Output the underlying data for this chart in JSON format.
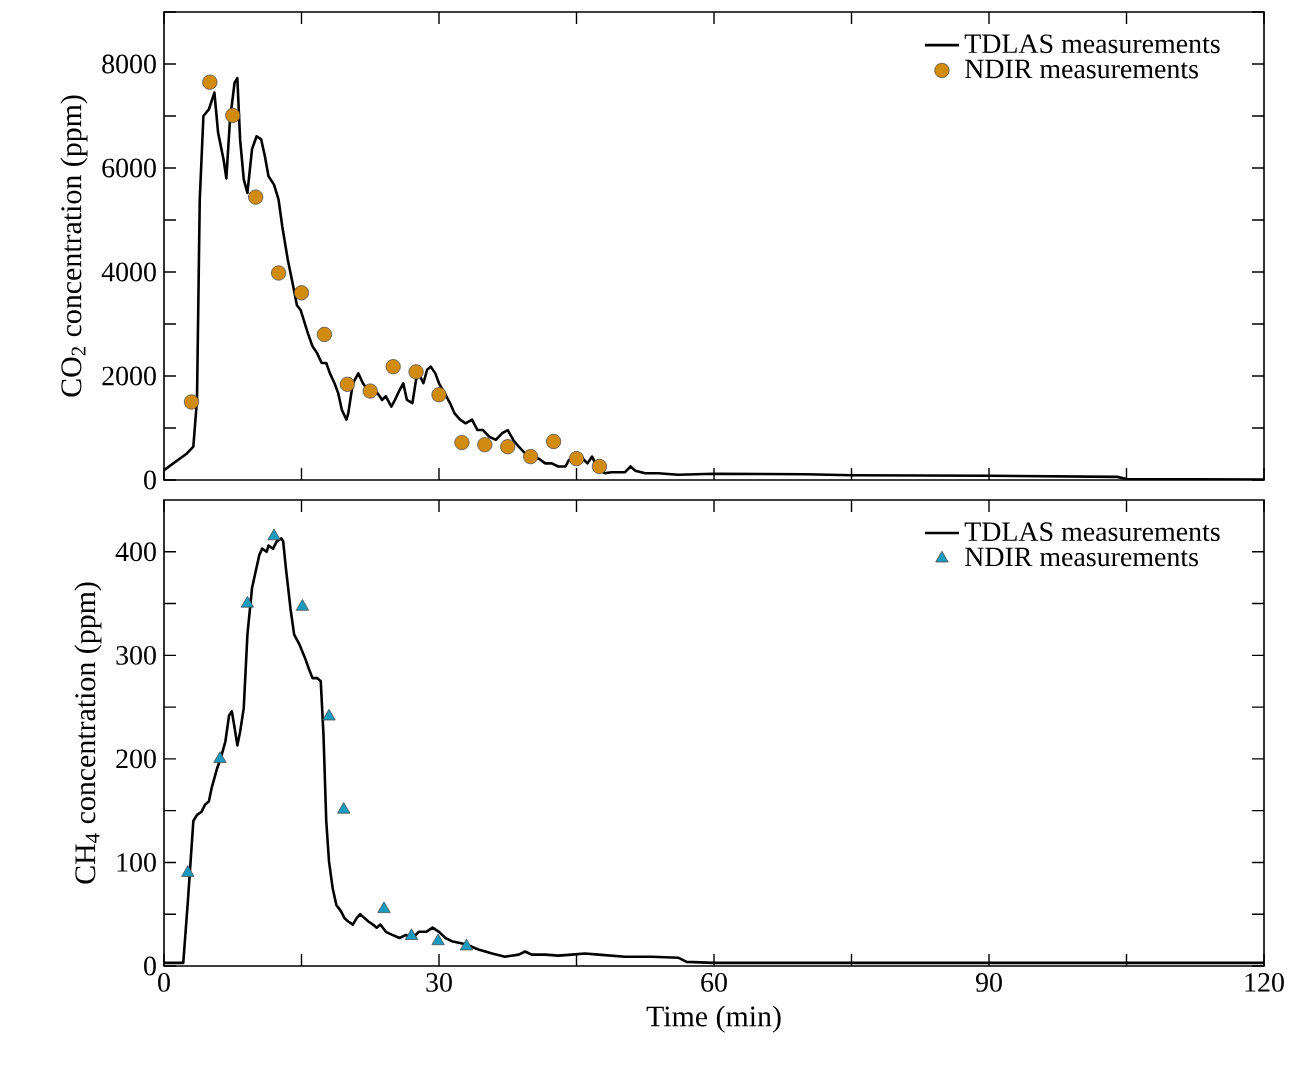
{
  "chart_data": [
    {
      "type": "line",
      "ylabel": "CO$_{2}$ concentration (ppm)",
      "xlim": [
        0,
        120
      ],
      "ylim": [
        0,
        9000
      ],
      "tick_labels": "y",
      "legend": "top right",
      "xticks": [
        0,
        {
          "value": 15,
          "label": null
        },
        30,
        {
          "value": 45,
          "label": null
        },
        60,
        {
          "value": 75,
          "label": null
        },
        90,
        {
          "value": 105,
          "label": null
        },
        120
      ],
      "yticks": [
        0,
        {
          "value": 1000,
          "label": null
        },
        2000,
        {
          "value": 3000,
          "label": null
        },
        4000,
        {
          "value": 5000,
          "label": null
        },
        6000,
        {
          "value": 7000,
          "label": null
        },
        8000,
        {
          "value": 9000,
          "label": null
        }
      ],
      "series": [
        {
          "name": "TDLAS measurements",
          "color": "#000000",
          "marker": "none",
          "x": [
            0,
            2.5,
            3.2,
            3.6,
            3.9,
            4.3,
            4.9,
            5.5,
            5.9,
            6.5,
            6.8,
            7.2,
            7.7,
            8.0,
            8.3,
            8.7,
            9.1,
            9.6,
            10.1,
            10.6,
            11.0,
            11.4,
            12.0,
            12.5,
            12.9,
            13.5,
            14.1,
            14.5,
            14.9,
            15.7,
            16.2,
            16.7,
            17.2,
            17.7,
            18.1,
            18.6,
            19.0,
            19.4,
            19.9,
            20.1,
            20.6,
            21.2,
            21.7,
            22.2,
            22.8,
            23.3,
            23.8,
            24.2,
            24.8,
            25.2,
            25.7,
            26.1,
            26.5,
            27.1,
            27.5,
            27.8,
            28.3,
            28.7,
            29.1,
            29.6,
            30.0,
            30.6,
            31.2,
            31.7,
            32.3,
            32.9,
            33.6,
            34.2,
            34.8,
            35.5,
            36.2,
            36.9,
            37.5,
            38.1,
            38.7,
            39.4,
            40.1,
            40.9,
            41.6,
            42.3,
            43.0,
            43.8,
            44.2,
            44.8,
            45.2,
            45.8,
            46.2,
            46.7,
            47.1,
            47.5,
            48.1,
            48.8,
            49.6,
            50.3,
            50.9,
            51.4,
            52.5,
            53.9,
            56.1,
            60,
            70,
            75,
            90,
            104,
            105,
            120
          ],
          "values": [
            190,
            510,
            640,
            1540,
            5390,
            7000,
            7130,
            7450,
            6680,
            6160,
            5800,
            6930,
            7640,
            7730,
            6550,
            5780,
            5520,
            6360,
            6610,
            6550,
            6230,
            5840,
            5680,
            5390,
            4880,
            4240,
            3720,
            3360,
            3270,
            2820,
            2570,
            2440,
            2250,
            2250,
            2050,
            1860,
            1670,
            1350,
            1160,
            1280,
            1860,
            2050,
            1860,
            1730,
            1670,
            1670,
            1540,
            1610,
            1410,
            1540,
            1730,
            1860,
            1540,
            1480,
            1930,
            2050,
            1860,
            2120,
            2180,
            2050,
            1860,
            1670,
            1480,
            1280,
            1160,
            1090,
            1160,
            960,
            960,
            830,
            770,
            900,
            960,
            770,
            640,
            510,
            450,
            410,
            320,
            320,
            260,
            260,
            390,
            390,
            510,
            390,
            320,
            450,
            300,
            190,
            130,
            150,
            150,
            150,
            260,
            180,
            130,
            130,
            100,
            120,
            110,
            90,
            80,
            60,
            20,
            10
          ]
        },
        {
          "name": "NDIR measurements",
          "type": "scatter",
          "color": "#d18c0f",
          "marker": "circle",
          "x": [
            3,
            5,
            7.5,
            10,
            12.5,
            15,
            17.5,
            20,
            22.5,
            25,
            27.5,
            30,
            32.5,
            35,
            37.5,
            40,
            42.5,
            45,
            47.5
          ],
          "values": [
            1500,
            7650,
            7010,
            5440,
            3980,
            3600,
            2800,
            1840,
            1710,
            2180,
            2080,
            1640,
            720,
            680,
            640,
            450,
            740,
            410,
            260
          ]
        }
      ]
    },
    {
      "type": "line",
      "ylabel": "CH$_{4}$ concentration (ppm)",
      "xlabel": "Time (min)",
      "xlim": [
        0,
        120
      ],
      "ylim": [
        0,
        450
      ],
      "legend": "top right",
      "xticks": [
        0,
        {
          "value": 15,
          "label": null
        },
        30,
        {
          "value": 45,
          "label": null
        },
        60,
        {
          "value": 75,
          "label": null
        },
        90,
        {
          "value": 105,
          "label": null
        },
        120
      ],
      "yticks": [
        0,
        {
          "value": 50,
          "label": null
        },
        100,
        {
          "value": 150,
          "label": null
        },
        200,
        {
          "value": 250,
          "label": null
        },
        300,
        {
          "value": 350,
          "label": null
        },
        400
      ],
      "series": [
        {
          "name": "TDLAS measurements",
          "color": "#000000",
          "marker": "none",
          "x": [
            0,
            2.1,
            2.6,
            3.2,
            3.6,
            4.1,
            4.5,
            4.9,
            5.2,
            5.8,
            6.2,
            6.7,
            7.1,
            7.4,
            7.7,
            8.0,
            8.3,
            8.7,
            9.1,
            9.6,
            10.0,
            10.4,
            10.7,
            11.2,
            11.4,
            11.9,
            12.3,
            12.8,
            13.0,
            13.3,
            13.8,
            14.2,
            14.8,
            15.4,
            15.8,
            16.2,
            16.7,
            17.1,
            17.4,
            17.7,
            18.0,
            18.4,
            18.8,
            19.3,
            19.7,
            20.1,
            20.6,
            21.0,
            21.4,
            21.9,
            22.3,
            22.8,
            23.2,
            23.6,
            24.2,
            24.9,
            25.7,
            26.4,
            27.1,
            27.8,
            28.6,
            29.3,
            30.0,
            30.7,
            31.4,
            32.9,
            34.3,
            35.8,
            37.2,
            38.7,
            39.4,
            40.1,
            41.6,
            43.0,
            44.5,
            45.9,
            47.4,
            50.3,
            53.2,
            56.1,
            57,
            60,
            90,
            120
          ],
          "values": [
            3,
            3,
            62,
            140,
            146,
            149,
            156,
            159,
            172,
            191,
            201,
            217,
            242,
            246,
            230,
            213,
            226,
            249,
            320,
            365,
            381,
            397,
            403,
            400,
            406,
            403,
            410,
            413,
            410,
            384,
            345,
            320,
            310,
            297,
            287,
            278,
            278,
            275,
            223,
            140,
            101,
            75,
            59,
            53,
            46,
            43,
            40,
            46,
            50,
            46,
            43,
            40,
            37,
            40,
            33,
            30,
            27,
            30,
            27,
            33,
            33,
            37,
            33,
            27,
            24,
            21,
            16,
            12,
            9,
            11,
            14,
            11,
            11,
            10,
            11,
            12,
            11,
            9,
            9,
            8,
            4,
            3,
            3,
            3
          ]
        },
        {
          "name": "NDIR measurements",
          "type": "scatter",
          "color": "#1a9bbf",
          "marker": "triangle",
          "x": [
            2.6,
            6.1,
            9.1,
            12.0,
            15.1,
            18.0,
            19.6,
            24.0,
            27.0,
            29.9,
            33.0
          ],
          "values": [
            90,
            200,
            350,
            415,
            347,
            241,
            151,
            55,
            29,
            24,
            19
          ]
        }
      ]
    }
  ]
}
